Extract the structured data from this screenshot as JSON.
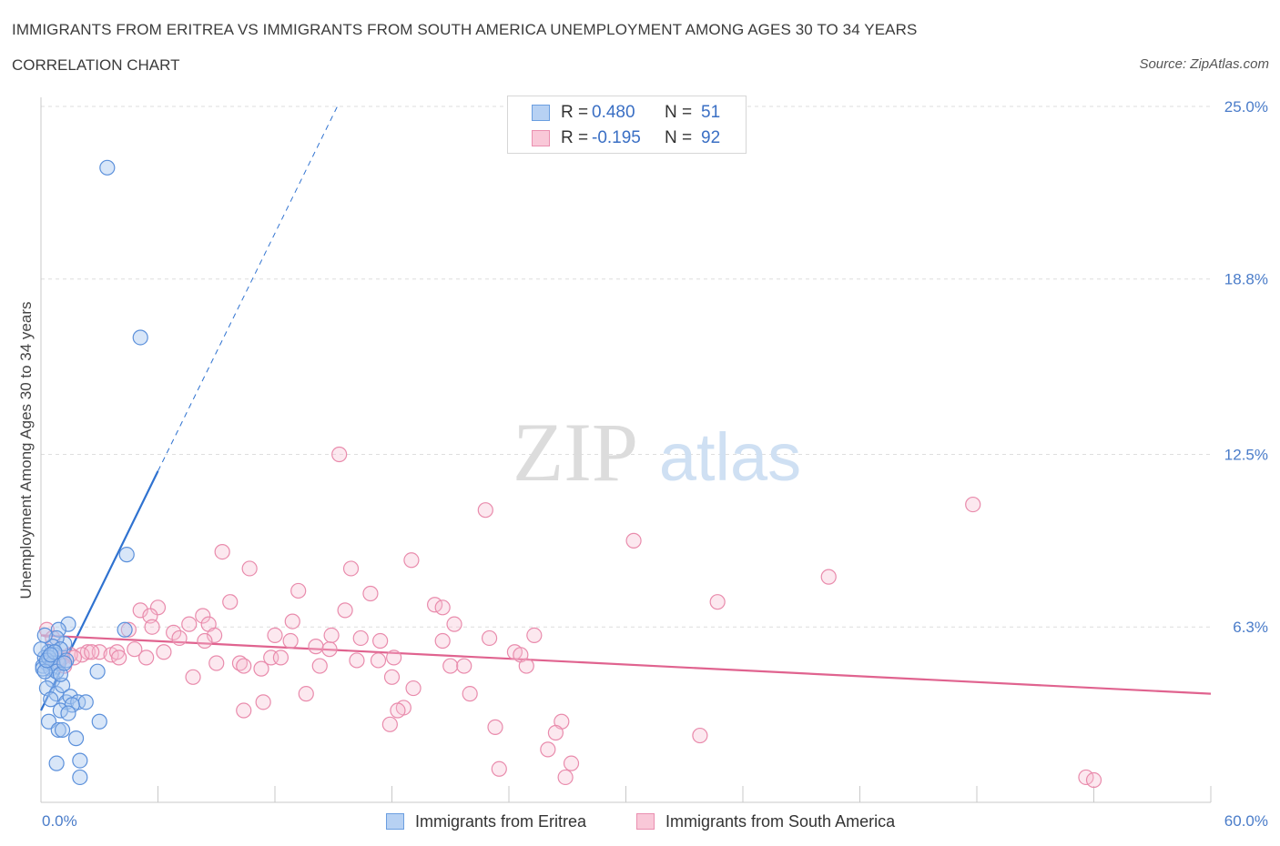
{
  "title": "IMMIGRANTS FROM ERITREA VS IMMIGRANTS FROM SOUTH AMERICA UNEMPLOYMENT AMONG AGES 30 TO 34 YEARS",
  "subtitle": "CORRELATION CHART",
  "source": "Source: ZipAtlas.com",
  "watermark": {
    "zip": "ZIP",
    "atlas": "atlas"
  },
  "legend": {
    "r_label": "R =",
    "n_label": "N =",
    "rows": [
      {
        "r": "0.480",
        "n": "51"
      },
      {
        "r": "-0.195",
        "n": "92"
      }
    ]
  },
  "chart_data": {
    "type": "scatter",
    "title": "IMMIGRANTS FROM ERITREA VS IMMIGRANTS FROM SOUTH AMERICA UNEMPLOYMENT AMONG AGES 30 TO 34 YEARS",
    "xlabel": "",
    "ylabel": "Unemployment Among Ages 30 to 34 years",
    "xlim": [
      0,
      60
    ],
    "ylim": [
      0,
      25
    ],
    "x_tick_labels": [
      "0.0%",
      "60.0%"
    ],
    "y_tick_labels": [
      "6.3%",
      "12.5%",
      "18.8%",
      "25.0%"
    ],
    "y_ticks": [
      6.3,
      12.5,
      18.8,
      25.0
    ],
    "grid": "horizontal dashed",
    "legend_position": "top-center",
    "colors": {
      "eritrea": "#4a86d8",
      "south_america": "#e8739b",
      "eritrea_fill": "#a9c8f0",
      "south_america_fill": "#f5bcd0"
    },
    "series": [
      {
        "name": "Immigrants from Eritrea",
        "r": 0.48,
        "n": 51,
        "trend": {
          "x0": 0,
          "y0": 3.3,
          "x1": 6.0,
          "y1": 11.9,
          "dashed_to_x": 15.2,
          "dashed_to_y": 25.0
        },
        "points": [
          [
            3.4,
            22.8
          ],
          [
            5.1,
            16.7
          ],
          [
            4.4,
            8.9
          ],
          [
            4.3,
            6.2
          ],
          [
            3.0,
            2.9
          ],
          [
            2.9,
            4.7
          ],
          [
            1.4,
            6.4
          ],
          [
            0.9,
            6.2
          ],
          [
            1.2,
            5.7
          ],
          [
            0.8,
            5.9
          ],
          [
            0.6,
            5.6
          ],
          [
            0.4,
            5.4
          ],
          [
            0.2,
            5.2
          ],
          [
            0.3,
            5.0
          ],
          [
            0.1,
            4.9
          ],
          [
            0.5,
            4.8
          ],
          [
            0.7,
            5.3
          ],
          [
            0.9,
            5.0
          ],
          [
            1.0,
            5.5
          ],
          [
            1.3,
            5.1
          ],
          [
            0.6,
            4.4
          ],
          [
            0.3,
            4.1
          ],
          [
            0.8,
            3.9
          ],
          [
            1.1,
            4.2
          ],
          [
            0.5,
            3.7
          ],
          [
            1.3,
            3.6
          ],
          [
            1.5,
            3.8
          ],
          [
            1.9,
            3.6
          ],
          [
            2.3,
            3.6
          ],
          [
            1.6,
            3.5
          ],
          [
            1.0,
            3.3
          ],
          [
            1.4,
            3.2
          ],
          [
            0.4,
            2.9
          ],
          [
            0.9,
            2.6
          ],
          [
            1.1,
            2.6
          ],
          [
            1.8,
            2.3
          ],
          [
            0.8,
            1.4
          ],
          [
            2.0,
            1.5
          ],
          [
            2.0,
            0.9
          ],
          [
            0.2,
            6.0
          ],
          [
            0.0,
            5.5
          ],
          [
            0.1,
            4.8
          ],
          [
            0.4,
            5.2
          ],
          [
            0.6,
            5.0
          ],
          [
            0.8,
            4.7
          ],
          [
            1.0,
            4.6
          ],
          [
            0.2,
            4.7
          ],
          [
            0.3,
            5.1
          ],
          [
            0.7,
            5.4
          ],
          [
            1.2,
            5.0
          ],
          [
            0.5,
            5.3
          ]
        ]
      },
      {
        "name": "Immigrants from South America",
        "r": -0.195,
        "n": 92,
        "trend": {
          "x0": 0,
          "y0": 6.0,
          "x1": 60,
          "y1": 3.9
        },
        "points": [
          [
            15.3,
            12.5
          ],
          [
            22.8,
            10.5
          ],
          [
            47.8,
            10.7
          ],
          [
            30.4,
            9.4
          ],
          [
            9.3,
            9.0
          ],
          [
            19.0,
            8.7
          ],
          [
            10.7,
            8.4
          ],
          [
            15.9,
            8.4
          ],
          [
            40.4,
            8.1
          ],
          [
            13.2,
            7.6
          ],
          [
            16.9,
            7.5
          ],
          [
            9.7,
            7.2
          ],
          [
            34.7,
            7.2
          ],
          [
            20.2,
            7.1
          ],
          [
            20.6,
            7.0
          ],
          [
            5.1,
            6.9
          ],
          [
            6.0,
            7.0
          ],
          [
            15.6,
            6.9
          ],
          [
            5.6,
            6.7
          ],
          [
            8.3,
            6.7
          ],
          [
            12.9,
            6.5
          ],
          [
            21.2,
            6.4
          ],
          [
            7.6,
            6.4
          ],
          [
            8.6,
            6.4
          ],
          [
            5.7,
            6.3
          ],
          [
            4.5,
            6.2
          ],
          [
            6.8,
            6.1
          ],
          [
            8.9,
            6.0
          ],
          [
            12.0,
            6.0
          ],
          [
            14.9,
            6.0
          ],
          [
            23.0,
            5.9
          ],
          [
            25.3,
            6.0
          ],
          [
            7.1,
            5.9
          ],
          [
            8.4,
            5.8
          ],
          [
            12.8,
            5.8
          ],
          [
            16.4,
            5.9
          ],
          [
            17.4,
            5.8
          ],
          [
            20.6,
            5.8
          ],
          [
            14.1,
            5.6
          ],
          [
            14.8,
            5.5
          ],
          [
            4.8,
            5.5
          ],
          [
            6.3,
            5.4
          ],
          [
            2.4,
            5.4
          ],
          [
            3.0,
            5.4
          ],
          [
            3.6,
            5.3
          ],
          [
            3.9,
            5.4
          ],
          [
            2.1,
            5.3
          ],
          [
            1.5,
            5.3
          ],
          [
            1.7,
            5.2
          ],
          [
            1.1,
            5.2
          ],
          [
            0.9,
            5.1
          ],
          [
            4.0,
            5.2
          ],
          [
            11.8,
            5.2
          ],
          [
            12.3,
            5.2
          ],
          [
            16.2,
            5.1
          ],
          [
            17.3,
            5.1
          ],
          [
            18.1,
            5.2
          ],
          [
            24.3,
            5.4
          ],
          [
            24.6,
            5.3
          ],
          [
            9.0,
            5.0
          ],
          [
            10.2,
            5.0
          ],
          [
            10.4,
            4.9
          ],
          [
            11.3,
            4.8
          ],
          [
            14.3,
            4.9
          ],
          [
            21.0,
            4.9
          ],
          [
            21.7,
            4.9
          ],
          [
            24.9,
            4.9
          ],
          [
            18.0,
            4.5
          ],
          [
            7.8,
            4.5
          ],
          [
            19.1,
            4.1
          ],
          [
            13.6,
            3.9
          ],
          [
            11.4,
            3.6
          ],
          [
            22.0,
            3.9
          ],
          [
            18.6,
            3.4
          ],
          [
            10.4,
            3.3
          ],
          [
            18.3,
            3.3
          ],
          [
            17.9,
            2.8
          ],
          [
            26.7,
            2.9
          ],
          [
            23.3,
            2.7
          ],
          [
            26.4,
            2.5
          ],
          [
            33.8,
            2.4
          ],
          [
            26.0,
            1.9
          ],
          [
            27.2,
            1.4
          ],
          [
            23.5,
            1.2
          ],
          [
            26.9,
            0.9
          ],
          [
            53.6,
            0.9
          ],
          [
            54.0,
            0.8
          ],
          [
            0.3,
            6.2
          ],
          [
            0.6,
            5.9
          ],
          [
            1.2,
            4.9
          ],
          [
            2.6,
            5.4
          ],
          [
            5.4,
            5.2
          ]
        ]
      }
    ]
  },
  "bottom_legend": [
    {
      "label": "Immigrants from Eritrea"
    },
    {
      "label": "Immigrants from South America"
    }
  ]
}
